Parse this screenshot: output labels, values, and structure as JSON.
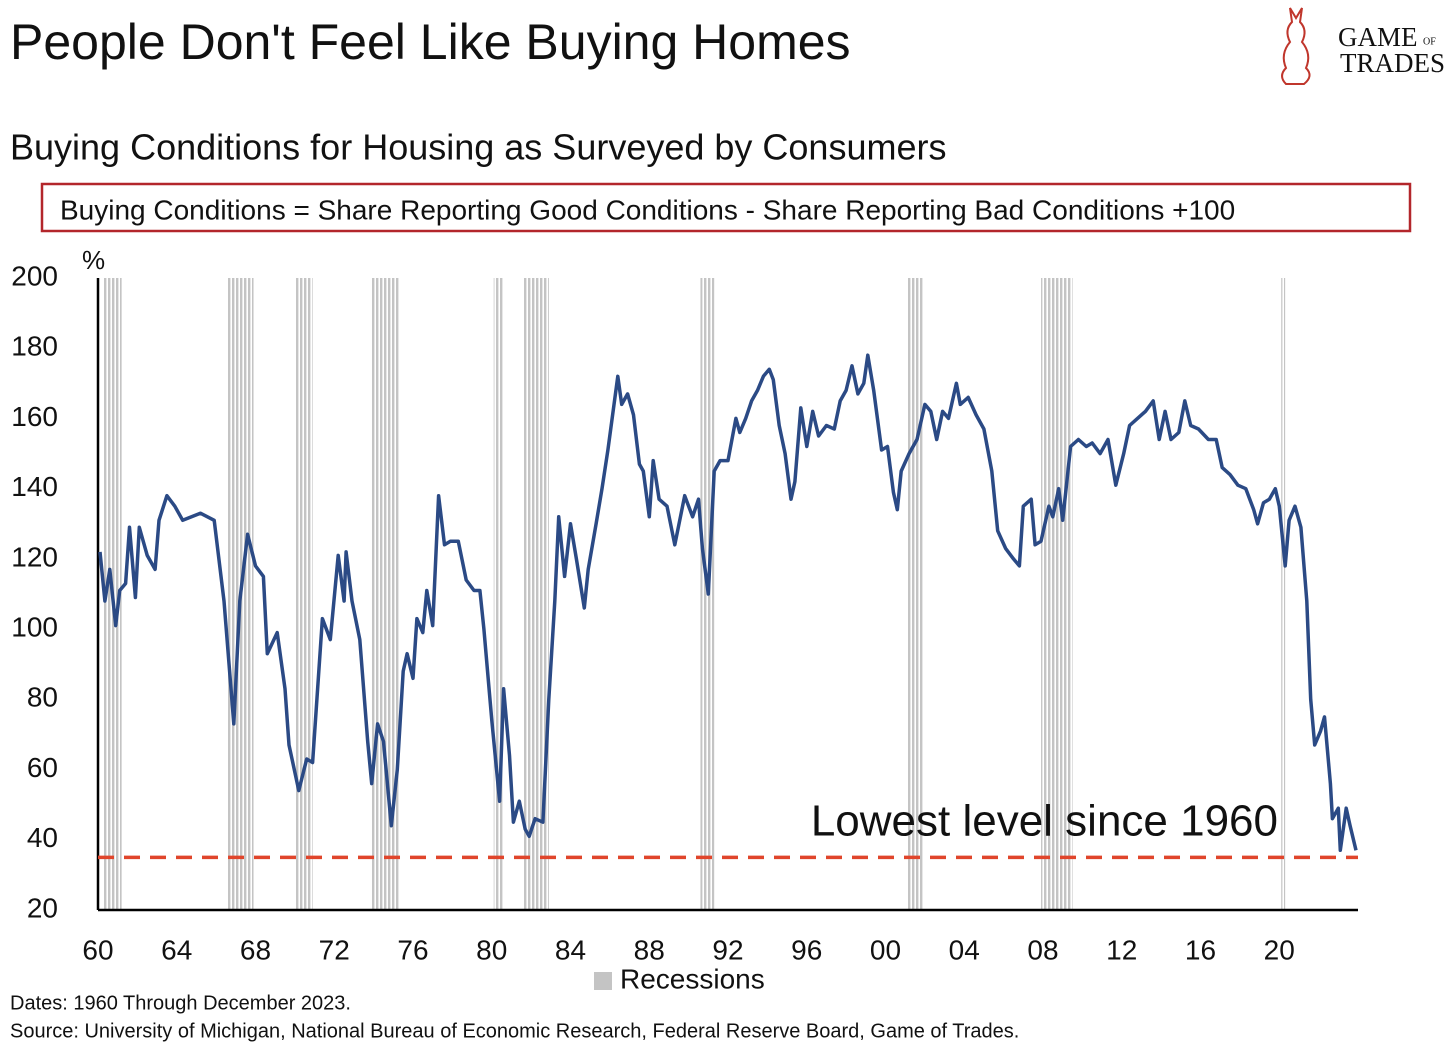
{
  "logo": {
    "line1": "GAME",
    "of": "OF",
    "line2": "TRADES"
  },
  "chart_data": {
    "type": "line",
    "title": "People Don't Feel Like Buying Homes",
    "subtitle": "Buying Conditions for Housing as Surveyed by Consumers",
    "formula": "Buying Conditions = Share Reporting Good Conditions - Share Reporting Bad Conditions +100",
    "ylabel": "%",
    "annotation": "Lowest level since 1960",
    "notes": [
      "Dates: 1960 Through December 2023.",
      "Source: University of Michigan, National Bureau of Economic Research, Federal Reserve Board, Game of Trades."
    ],
    "color": "#2b4a85",
    "xlim": [
      1960,
      2024
    ],
    "ylim": [
      20,
      200
    ],
    "yticks": [
      20,
      40,
      60,
      80,
      100,
      120,
      140,
      160,
      180,
      200
    ],
    "xticks": [
      {
        "value": 1960,
        "label": "60"
      },
      {
        "value": 1964,
        "label": "64"
      },
      {
        "value": 1968,
        "label": "68"
      },
      {
        "value": 1972,
        "label": "72"
      },
      {
        "value": 1976,
        "label": "76"
      },
      {
        "value": 1980,
        "label": "80"
      },
      {
        "value": 1984,
        "label": "84"
      },
      {
        "value": 1988,
        "label": "88"
      },
      {
        "value": 1992,
        "label": "92"
      },
      {
        "value": 1996,
        "label": "96"
      },
      {
        "value": 2000,
        "label": "00"
      },
      {
        "value": 2004,
        "label": "04"
      },
      {
        "value": 2008,
        "label": "08"
      },
      {
        "value": 2012,
        "label": "12"
      },
      {
        "value": 2016,
        "label": "16"
      },
      {
        "value": 2020,
        "label": "20"
      }
    ],
    "recessions": {
      "name": "Recessions",
      "color": "#c4c4c4",
      "ranges": [
        [
          1960.3,
          1961.2
        ],
        [
          1966.6,
          1967.9
        ],
        [
          1970.0,
          1970.9
        ],
        [
          1973.9,
          1975.3
        ],
        [
          1980.1,
          1980.6
        ],
        [
          1981.6,
          1982.9
        ],
        [
          1990.6,
          1991.3
        ],
        [
          2001.1,
          2001.9
        ],
        [
          2007.9,
          2009.5
        ],
        [
          2020.1,
          2020.3
        ]
      ]
    },
    "reference_line": {
      "value": 35,
      "color": "#e0452b"
    },
    "x": [
      1960.1,
      1960.35,
      1960.6,
      1960.9,
      1961.1,
      1961.4,
      1961.6,
      1961.9,
      1962.1,
      1962.5,
      1962.9,
      1963.1,
      1963.5,
      1963.9,
      1964.3,
      1965.2,
      1965.9,
      1966.4,
      1966.9,
      1967.2,
      1967.6,
      1968.0,
      1968.4,
      1968.6,
      1969.1,
      1969.5,
      1969.7,
      1970.2,
      1970.6,
      1970.9,
      1971.4,
      1971.8,
      1972.2,
      1972.5,
      1972.6,
      1972.9,
      1973.3,
      1973.7,
      1973.9,
      1974.2,
      1974.5,
      1974.9,
      1975.2,
      1975.5,
      1975.7,
      1976.0,
      1976.2,
      1976.5,
      1976.7,
      1977.0,
      1977.3,
      1977.6,
      1977.9,
      1978.3,
      1978.7,
      1979.1,
      1979.4,
      1979.6,
      1980.0,
      1980.4,
      1980.6,
      1980.9,
      1981.1,
      1981.4,
      1981.7,
      1981.9,
      1982.2,
      1982.6,
      1982.9,
      1983.2,
      1983.4,
      1983.7,
      1984.0,
      1984.3,
      1984.7,
      1984.9,
      1985.3,
      1985.6,
      1985.9,
      1986.4,
      1986.6,
      1986.9,
      1987.2,
      1987.5,
      1987.7,
      1988.0,
      1988.2,
      1988.5,
      1988.9,
      1989.3,
      1989.8,
      1990.2,
      1990.5,
      1990.7,
      1991.0,
      1991.3,
      1991.6,
      1992.0,
      1992.4,
      1992.6,
      1992.9,
      1993.2,
      1993.5,
      1993.8,
      1994.1,
      1994.3,
      1994.6,
      1994.9,
      1995.2,
      1995.4,
      1995.7,
      1996.0,
      1996.3,
      1996.6,
      1997.0,
      1997.4,
      1997.7,
      1998.0,
      1998.3,
      1998.6,
      1998.9,
      1999.1,
      1999.4,
      1999.8,
      2000.1,
      2000.4,
      2000.6,
      2000.8,
      2001.2,
      2001.6,
      2002.0,
      2002.3,
      2002.6,
      2002.9,
      2003.2,
      2003.6,
      2003.8,
      2004.2,
      2004.6,
      2005.0,
      2005.4,
      2005.7,
      2006.1,
      2006.5,
      2006.8,
      2007.0,
      2007.4,
      2007.6,
      2007.9,
      2008.3,
      2008.5,
      2008.8,
      2009.0,
      2009.4,
      2009.8,
      2010.2,
      2010.5,
      2010.9,
      2011.3,
      2011.7,
      2012.1,
      2012.4,
      2012.8,
      2013.2,
      2013.6,
      2013.9,
      2014.2,
      2014.5,
      2014.9,
      2015.2,
      2015.5,
      2015.9,
      2016.4,
      2016.8,
      2017.1,
      2017.5,
      2017.9,
      2018.3,
      2018.7,
      2018.9,
      2019.2,
      2019.5,
      2019.8,
      2020.0,
      2020.3,
      2020.5,
      2020.8,
      2021.1,
      2021.4,
      2021.6,
      2021.8,
      2022.1,
      2022.3,
      2022.6,
      2022.7,
      2023.0,
      2023.1,
      2023.4,
      2023.6,
      2023.9
    ],
    "values": [
      122,
      108,
      117,
      101,
      111,
      113,
      129,
      109,
      129,
      121,
      117,
      131,
      138,
      135,
      131,
      133,
      131,
      108,
      73,
      108,
      127,
      118,
      115,
      93,
      99,
      83,
      67,
      54,
      63,
      62,
      103,
      97,
      121,
      108,
      122,
      108,
      97,
      68,
      56,
      73,
      68,
      44,
      60,
      88,
      93,
      86,
      103,
      99,
      111,
      101,
      138,
      124,
      125,
      125,
      114,
      111,
      111,
      100,
      74,
      51,
      83,
      64,
      45,
      51,
      43,
      41,
      46,
      45,
      80,
      108,
      132,
      115,
      130,
      120,
      106,
      117,
      130,
      140,
      151,
      172,
      164,
      167,
      161,
      147,
      145,
      132,
      148,
      137,
      135,
      124,
      138,
      132,
      137,
      123,
      110,
      145,
      148,
      148,
      160,
      156,
      160,
      165,
      168,
      172,
      174,
      171,
      158,
      150,
      137,
      142,
      163,
      152,
      162,
      155,
      158,
      157,
      165,
      168,
      175,
      167,
      170,
      178,
      168,
      151,
      152,
      139,
      134,
      145,
      150,
      154,
      164,
      162,
      154,
      162,
      160,
      170,
      164,
      166,
      161,
      157,
      145,
      128,
      123,
      120,
      118,
      135,
      137,
      124,
      125,
      135,
      132,
      140,
      131,
      152,
      154,
      152,
      153,
      150,
      154,
      141,
      150,
      158,
      160,
      162,
      165,
      154,
      162,
      154,
      156,
      165,
      158,
      157,
      154,
      154,
      146,
      144,
      141,
      140,
      134,
      130,
      136,
      137,
      140,
      135,
      118,
      131,
      135,
      129,
      108,
      80,
      67,
      71,
      75,
      56,
      46,
      49,
      37,
      49,
      44,
      37
    ]
  }
}
